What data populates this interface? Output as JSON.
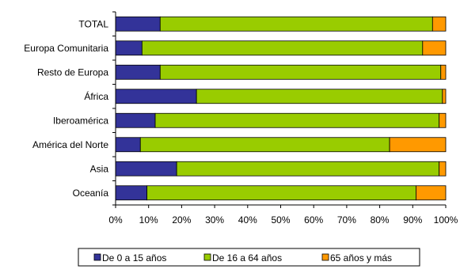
{
  "chart_data": {
    "type": "bar",
    "orientation": "horizontal",
    "stacked": true,
    "percent": true,
    "categories": [
      "TOTAL",
      "Europa Comunitaria",
      "Resto de Europa",
      "África",
      "Iberoamérica",
      "América del Norte",
      "Asia",
      "Oceanía"
    ],
    "series": [
      {
        "name": "De 0 a 15 años",
        "color": "#333399",
        "values": [
          13.5,
          8,
          13.5,
          24.5,
          12,
          7.5,
          18.5,
          9.5
        ]
      },
      {
        "name": "De 16 a 64 años",
        "color": "#99CC00",
        "values": [
          82.5,
          85,
          85,
          74.5,
          86,
          75.5,
          79.5,
          81.5
        ]
      },
      {
        "name": "65 años y más",
        "color": "#FF9900",
        "values": [
          4,
          7,
          1.5,
          1,
          2,
          17,
          2,
          9
        ]
      }
    ],
    "xlim": [
      0,
      100
    ],
    "xticks": [
      "0%",
      "10%",
      "20%",
      "30%",
      "40%",
      "50%",
      "60%",
      "70%",
      "80%",
      "90%",
      "100%"
    ],
    "legend_position": "bottom",
    "grid": false
  }
}
